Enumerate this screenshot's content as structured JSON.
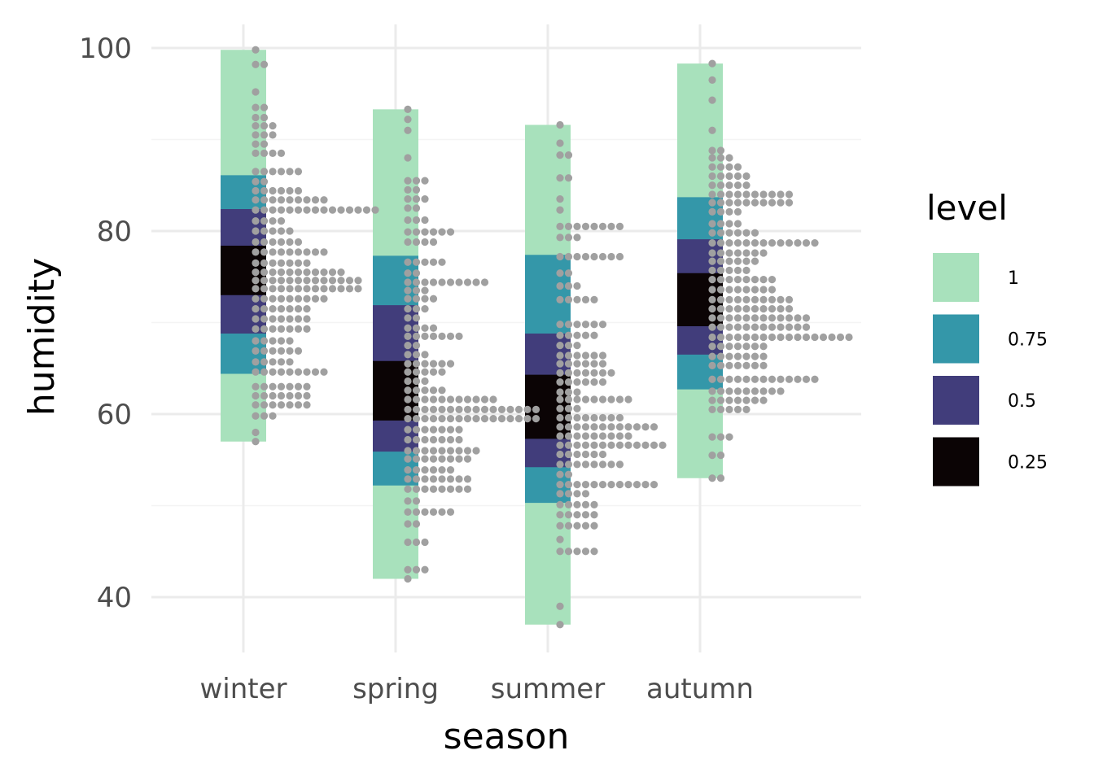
{
  "chart_data": {
    "type": "interval-dotplot",
    "xlabel": "season",
    "ylabel": "humidity",
    "categories": [
      "winter",
      "spring",
      "summer",
      "autumn"
    ],
    "ylim": [
      33.5,
      103
    ],
    "yticks": [
      40,
      60,
      80,
      100
    ],
    "grid": true,
    "legend": {
      "title": "level",
      "placement": "right",
      "entries": [
        {
          "label": "1",
          "color": "#a8e1bc"
        },
        {
          "label": "0.75",
          "color": "#3497a9"
        },
        {
          "label": "0.5",
          "color": "#413d7b"
        },
        {
          "label": "0.25",
          "color": "#0b0405"
        }
      ]
    },
    "dot_color": "#a0a0a0",
    "dot_bin_width": 0.57,
    "intervals": [
      {
        "season": "winter",
        "1": [
          57.0,
          99.8
        ],
        "0.75": [
          64.4,
          86.1
        ],
        "0.5": [
          68.8,
          82.4
        ],
        "0.25": [
          73.0,
          78.4
        ]
      },
      {
        "season": "spring",
        "1": [
          42.0,
          93.3
        ],
        "0.75": [
          52.2,
          77.3
        ],
        "0.5": [
          55.9,
          71.9
        ],
        "0.25": [
          59.3,
          65.8
        ]
      },
      {
        "season": "summer",
        "1": [
          37.0,
          91.6
        ],
        "0.75": [
          50.3,
          77.4
        ],
        "0.5": [
          54.2,
          68.8
        ],
        "0.25": [
          57.3,
          64.3
        ]
      },
      {
        "season": "autumn",
        "1": [
          53.0,
          98.3
        ],
        "0.75": [
          62.7,
          83.7
        ],
        "0.5": [
          66.5,
          79.1
        ],
        "0.25": [
          69.6,
          75.4
        ]
      }
    ],
    "dot_bins": [
      {
        "season": "winter",
        "bins": [
          [
            57,
            1
          ],
          [
            58,
            1
          ],
          [
            59.8,
            3
          ],
          [
            61,
            7
          ],
          [
            62,
            7
          ],
          [
            63,
            7
          ],
          [
            64.6,
            9
          ],
          [
            65.7,
            5
          ],
          [
            66.9,
            6
          ],
          [
            68,
            5
          ],
          [
            69.3,
            7
          ],
          [
            70.4,
            7
          ],
          [
            71.5,
            7
          ],
          [
            72.6,
            9
          ],
          [
            73.7,
            13
          ],
          [
            74.6,
            13
          ],
          [
            75.5,
            11
          ],
          [
            76.5,
            7
          ],
          [
            77.7,
            9
          ],
          [
            78.8,
            6
          ],
          [
            80,
            5
          ],
          [
            81.1,
            4
          ],
          [
            82.3,
            15
          ],
          [
            83.4,
            9
          ],
          [
            84.4,
            6
          ],
          [
            85.4,
            2
          ],
          [
            86.5,
            6
          ],
          [
            88.5,
            4
          ],
          [
            89.5,
            2
          ],
          [
            90.5,
            3
          ],
          [
            91.5,
            3
          ],
          [
            92.4,
            2
          ],
          [
            93.5,
            2
          ],
          [
            95.2,
            1
          ],
          [
            98.2,
            2
          ],
          [
            99.8,
            1
          ]
        ]
      },
      {
        "season": "spring",
        "bins": [
          [
            42,
            1
          ],
          [
            43,
            3
          ],
          [
            46,
            3
          ],
          [
            48,
            2
          ],
          [
            49.3,
            6
          ],
          [
            50.5,
            2
          ],
          [
            51.8,
            8
          ],
          [
            52.9,
            8
          ],
          [
            53.9,
            6
          ],
          [
            55.1,
            8
          ],
          [
            56,
            9
          ],
          [
            57.2,
            7
          ],
          [
            58.3,
            7
          ],
          [
            59.5,
            16
          ],
          [
            60.5,
            16
          ],
          [
            61.6,
            11
          ],
          [
            62.6,
            5
          ],
          [
            63.6,
            3
          ],
          [
            64.6,
            5
          ],
          [
            65.5,
            6
          ],
          [
            66.5,
            3
          ],
          [
            67.5,
            2
          ],
          [
            68.5,
            7
          ],
          [
            69.4,
            4
          ],
          [
            70.5,
            2
          ],
          [
            71.5,
            3
          ],
          [
            72.6,
            4
          ],
          [
            73.5,
            3
          ],
          [
            74.4,
            10
          ],
          [
            75.4,
            2
          ],
          [
            76.6,
            5
          ],
          [
            78.8,
            4
          ],
          [
            79.9,
            6
          ],
          [
            81.2,
            3
          ],
          [
            82.5,
            2
          ],
          [
            83.5,
            3
          ],
          [
            84.5,
            2
          ],
          [
            85.5,
            3
          ],
          [
            88,
            1
          ],
          [
            91,
            1
          ],
          [
            92.2,
            1
          ],
          [
            93.3,
            1
          ]
        ]
      },
      {
        "season": "summer",
        "bins": [
          [
            37,
            1
          ],
          [
            39,
            1
          ],
          [
            45,
            5
          ],
          [
            46.3,
            1
          ],
          [
            47.8,
            5
          ],
          [
            49,
            5
          ],
          [
            50.1,
            5
          ],
          [
            51.3,
            4
          ],
          [
            52.3,
            12
          ],
          [
            53.4,
            2
          ],
          [
            54.5,
            8
          ],
          [
            55.6,
            6
          ],
          [
            56.6,
            13
          ],
          [
            57.6,
            9
          ],
          [
            58.6,
            12
          ],
          [
            59.6,
            8
          ],
          [
            60.6,
            3
          ],
          [
            61.6,
            9
          ],
          [
            62.4,
            3
          ],
          [
            63.5,
            6
          ],
          [
            64.5,
            7
          ],
          [
            65.5,
            6
          ],
          [
            66.4,
            6
          ],
          [
            67.5,
            3
          ],
          [
            68.6,
            5
          ],
          [
            69.8,
            6
          ],
          [
            72.5,
            5
          ],
          [
            74,
            3
          ],
          [
            75.4,
            2
          ],
          [
            77.2,
            8
          ],
          [
            79.3,
            3
          ],
          [
            80.5,
            8
          ],
          [
            82.3,
            1
          ],
          [
            83.5,
            1
          ],
          [
            85.8,
            2
          ],
          [
            88.3,
            2
          ],
          [
            89.6,
            1
          ],
          [
            91.6,
            1
          ]
        ]
      },
      {
        "season": "autumn",
        "bins": [
          [
            53,
            2
          ],
          [
            55.5,
            2
          ],
          [
            57.5,
            3
          ],
          [
            60.5,
            5
          ],
          [
            61.5,
            7
          ],
          [
            62.5,
            9
          ],
          [
            63.8,
            13
          ],
          [
            65.3,
            7
          ],
          [
            66.3,
            7
          ],
          [
            67.4,
            7
          ],
          [
            68.4,
            17
          ],
          [
            69.5,
            12
          ],
          [
            70.5,
            12
          ],
          [
            71.5,
            10
          ],
          [
            72.5,
            10
          ],
          [
            73.6,
            8
          ],
          [
            74.7,
            8
          ],
          [
            75.7,
            5
          ],
          [
            76.7,
            6
          ],
          [
            77.6,
            7
          ],
          [
            78.7,
            13
          ],
          [
            79.8,
            6
          ],
          [
            80.8,
            4
          ],
          [
            82.1,
            4
          ],
          [
            83.1,
            10
          ],
          [
            84,
            10
          ],
          [
            85,
            5
          ],
          [
            86,
            5
          ],
          [
            87,
            4
          ],
          [
            88,
            3
          ],
          [
            88.8,
            2
          ],
          [
            91,
            1
          ],
          [
            94.3,
            1
          ],
          [
            96.5,
            1
          ],
          [
            98.3,
            1
          ]
        ]
      }
    ]
  }
}
